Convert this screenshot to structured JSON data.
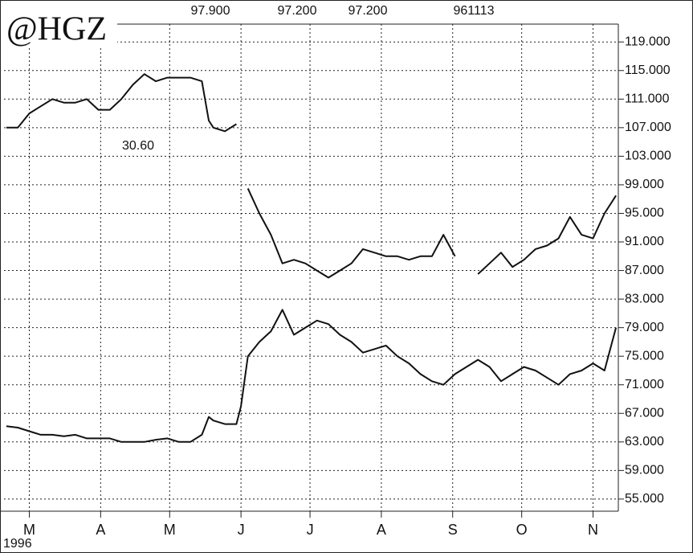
{
  "chart_data": {
    "type": "line",
    "title": "@HGZ",
    "annotations": [
      "97.900",
      "97.200",
      "97.200",
      "961113",
      "30.60"
    ],
    "year_label": "1996",
    "x": [
      -10,
      -5,
      0,
      5,
      10,
      15,
      20,
      25,
      30,
      35,
      40,
      45,
      50,
      55,
      60,
      65,
      70,
      75,
      78,
      80,
      85,
      90,
      92,
      95,
      100,
      105,
      110,
      115,
      120,
      125,
      130,
      135,
      140,
      145,
      150,
      155,
      160,
      165,
      170,
      175,
      180,
      185,
      190,
      195,
      200,
      205,
      210,
      215,
      220,
      225,
      230,
      235,
      240,
      245,
      250,
      255
    ],
    "series": [
      {
        "color": "#111111",
        "values": [
          107,
          107,
          109,
          110,
          111,
          110.5,
          110.5,
          111,
          109.5,
          109.5,
          111,
          113,
          114.5,
          113.5,
          114,
          114,
          114,
          113.5,
          108,
          107,
          106.5,
          107.5,
          null,
          98.5,
          95,
          92,
          88,
          88.5,
          88,
          87,
          86,
          87,
          88,
          90,
          89.5,
          89,
          89,
          88.5,
          89,
          89,
          92,
          89,
          null,
          86.5,
          88,
          89.5,
          87.5,
          88.5,
          90,
          90.5,
          91.5,
          94.5,
          92,
          91.5,
          95,
          97.5
        ]
      },
      {
        "color": "#111111",
        "values": [
          65.2,
          65,
          64.5,
          64,
          64,
          63.8,
          64,
          63.5,
          63.5,
          63.5,
          63,
          63,
          63,
          63.3,
          63.5,
          63,
          63,
          64,
          66.5,
          66,
          65.5,
          65.5,
          68,
          75,
          77,
          78.5,
          81.5,
          78,
          79,
          80,
          79.5,
          78,
          77,
          75.5,
          76,
          76.5,
          75,
          74,
          72.5,
          71.5,
          71,
          72.5,
          73.5,
          74.5,
          73.5,
          71.5,
          72.5,
          73.5,
          73,
          72,
          71,
          72.5,
          73,
          74,
          73,
          79
        ]
      }
    ],
    "xlim": [
      -11,
      256
    ],
    "xticks": [
      {
        "value": 0,
        "label": "M"
      },
      {
        "value": 31,
        "label": "A"
      },
      {
        "value": 61,
        "label": "M"
      },
      {
        "value": 92,
        "label": "J"
      },
      {
        "value": 122,
        "label": "J"
      },
      {
        "value": 153,
        "label": "A"
      },
      {
        "value": 184,
        "label": "S"
      },
      {
        "value": 214,
        "label": "O"
      },
      {
        "value": 245,
        "label": "N"
      }
    ],
    "ylim": [
      53.3,
      121.5
    ],
    "yticks": [
      {
        "value": 55,
        "label": "55.000"
      },
      {
        "value": 59,
        "label": "59.000"
      },
      {
        "value": 63,
        "label": "63.000"
      },
      {
        "value": 67,
        "label": "67.000"
      },
      {
        "value": 71,
        "label": "71.000"
      },
      {
        "value": 75,
        "label": "75.000"
      },
      {
        "value": 79,
        "label": "79.000"
      },
      {
        "value": 83,
        "label": "83.000"
      },
      {
        "value": 87,
        "label": "87.000"
      },
      {
        "value": 91,
        "label": "91.000"
      },
      {
        "value": 95,
        "label": "95.000"
      },
      {
        "value": 99,
        "label": "99.000"
      },
      {
        "value": 103,
        "label": "103.000"
      },
      {
        "value": 107,
        "label": "107.000"
      },
      {
        "value": 111,
        "label": "111.000"
      },
      {
        "value": 115,
        "label": "115.000"
      },
      {
        "value": 119,
        "label": "119.000"
      }
    ],
    "grid": true
  }
}
